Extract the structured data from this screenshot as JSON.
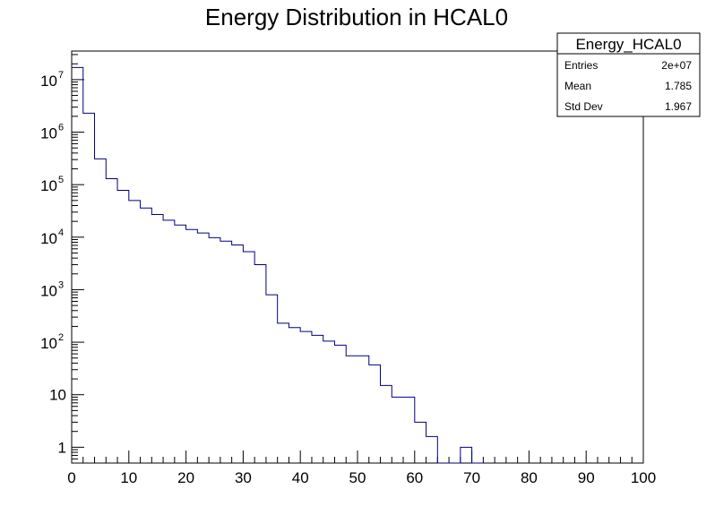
{
  "chart_data": {
    "type": "histogram",
    "title": "Energy Distribution in HCAL0",
    "xlabel": "",
    "ylabel": "",
    "xlim": [
      0,
      100
    ],
    "ylim": [
      0.5,
      35000000
    ],
    "y_scale": "log",
    "grid": false,
    "bin_width": 2,
    "x_ticks": [
      "0",
      "10",
      "20",
      "30",
      "40",
      "50",
      "60",
      "70",
      "80",
      "90",
      "100"
    ],
    "y_ticks": [
      {
        "value": 10000000,
        "base": "10",
        "exp": "7"
      },
      {
        "value": 1000000,
        "base": "10",
        "exp": "6"
      },
      {
        "value": 100000,
        "base": "10",
        "exp": "5"
      },
      {
        "value": 10000,
        "base": "10",
        "exp": "4"
      },
      {
        "value": 1000,
        "base": "10",
        "exp": "3"
      },
      {
        "value": 100,
        "base": "10",
        "exp": "2"
      },
      {
        "value": 10,
        "base": "10",
        "exp": ""
      },
      {
        "value": 1,
        "base": "1",
        "exp": ""
      }
    ],
    "series": [
      {
        "line_color": "#000080",
        "bin_edges": [
          0,
          2,
          4,
          6,
          8,
          10,
          12,
          14,
          16,
          18,
          20,
          22,
          24,
          26,
          28,
          30,
          32,
          34,
          36,
          38,
          40,
          42,
          44,
          46,
          48,
          50,
          52,
          54,
          56,
          58,
          60,
          62,
          64,
          66,
          68,
          70
        ],
        "counts": [
          17000000,
          2300000,
          310000,
          130000,
          78000,
          50000,
          36000,
          27000,
          21000,
          17000,
          14000,
          12000,
          9800,
          8400,
          7100,
          5300,
          3000,
          800,
          230,
          190,
          160,
          135,
          105,
          88,
          55,
          55,
          37,
          15,
          9,
          9,
          3,
          1.6,
          0,
          0,
          1,
          0
        ]
      }
    ],
    "stats_box": {
      "name": "Energy_HCAL0",
      "rows": [
        {
          "label": "Entries",
          "value": "2e+07"
        },
        {
          "label": "Mean",
          "value": "1.785"
        },
        {
          "label": "Std Dev",
          "value": "1.967"
        }
      ]
    }
  }
}
